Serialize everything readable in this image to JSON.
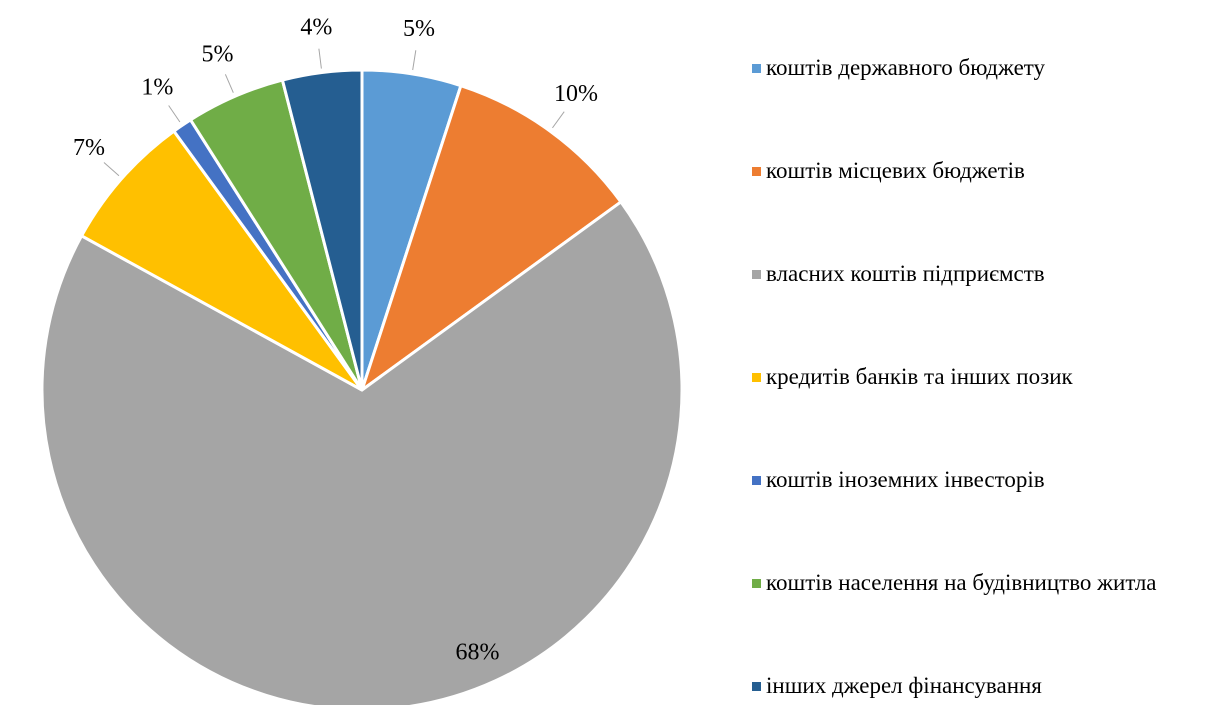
{
  "chart_data": {
    "type": "pie",
    "categories": [
      "коштів державного бюджету",
      "коштів місцевих бюджетів",
      "власних коштів підприємств",
      "кредитів банків та інших позик",
      "коштів іноземних інвесторів",
      "коштів населення на будівництво житла",
      "інших джерел фінансування"
    ],
    "values": [
      5,
      10,
      68,
      7,
      1,
      5,
      4
    ],
    "value_labels": [
      "5%",
      "10%",
      "68%",
      "7%",
      "1%",
      "5%",
      "4%"
    ],
    "colors": [
      "#5b9bd5",
      "#ed7d31",
      "#a5a5a5",
      "#ffc000",
      "#4472c4",
      "#70ad47",
      "#255e91"
    ],
    "legend": "right"
  }
}
